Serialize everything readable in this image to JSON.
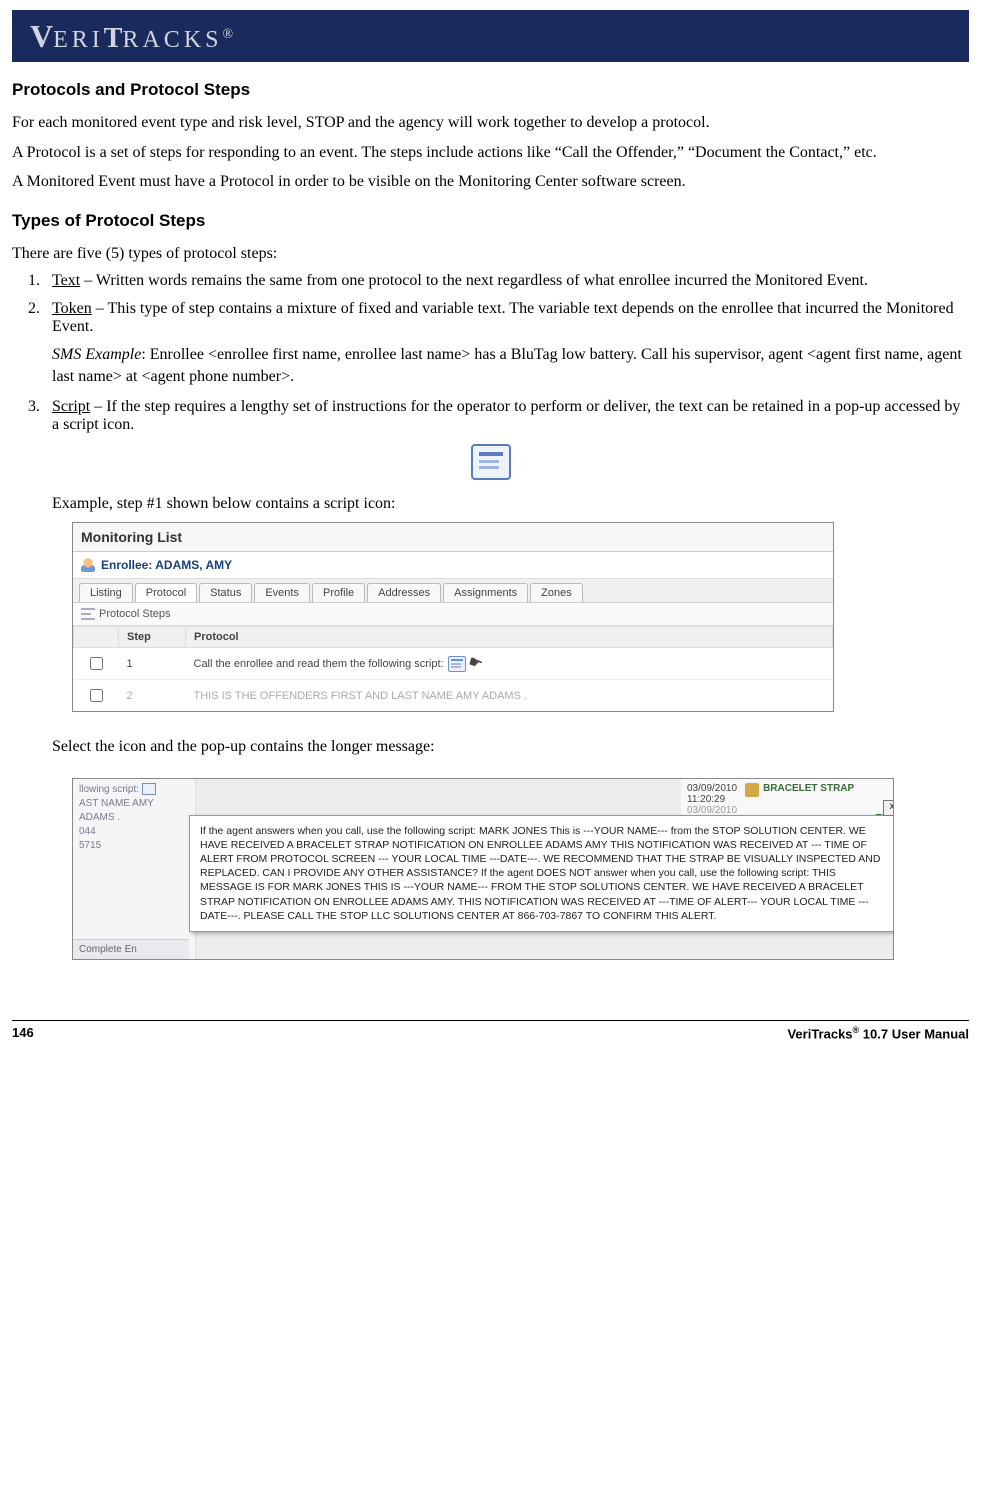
{
  "header": {
    "brand": "VERITRACKS",
    "reg": "®"
  },
  "section1": {
    "title": "Protocols and Protocol Steps",
    "p1": "For each monitored event type and risk level, STOP and the agency will work together to develop a protocol.",
    "p2": "A Protocol is a set of steps for responding to an event.  The steps include actions like “Call the Offender,” “Document the Contact,” etc.",
    "p3": "A Monitored Event must have a Protocol in order to be visible on the Monitoring Center software screen."
  },
  "section2": {
    "title": "Types of Protocol Steps",
    "intro": "There are five (5) types of protocol steps:",
    "item1_label": "Text",
    "item1_text": " – Written words remains the same from one protocol to the next regardless of what enrollee incurred the Monitored Event.",
    "item2_label": "Token",
    "item2_text": " – This type of step contains a mixture of fixed and variable text.  The variable text depends on the enrollee that incurred the Monitored Event.",
    "item2_example_label": "SMS Example",
    "item2_example_text": ":  Enrollee <enrollee first name, enrollee last name> has a BluTag low battery.  Call his supervisor, agent <agent first name, agent last name> at <agent phone number>.",
    "item3_label": "Script",
    "item3_text": " – If the step requires a lengthy set of instructions for the operator to perform or deliver, the text can be retained in a pop-up accessed by a script icon.",
    "example_caption": "Example, step #1 shown below contains a script icon:",
    "select_caption": "Select the icon and the pop-up contains the longer message:"
  },
  "monitoring_list": {
    "title": "Monitoring List",
    "enrollee_label": "Enrollee: ADAMS, AMY",
    "tabs": [
      "Listing",
      "Protocol",
      "Status",
      "Events",
      "Profile",
      "Addresses",
      "Assignments",
      "Zones"
    ],
    "active_tab_index": 1,
    "subheader": "Protocol Steps",
    "columns": [
      "",
      "Step",
      "Protocol"
    ],
    "rows": [
      {
        "checked": false,
        "step": "1",
        "protocol": "Call the enrollee and read them the following script:",
        "has_icon": true,
        "has_cursor": true,
        "faded": false
      },
      {
        "checked": false,
        "step": "2",
        "protocol": "THIS IS THE OFFENDERS FIRST AND LAST NAME AMY ADAMS .",
        "has_icon": false,
        "has_cursor": false,
        "faded": true
      }
    ]
  },
  "popup": {
    "bg_left_lines": [
      "llowing script:",
      "AST NAME AMY ADAMS .",
      "044",
      "5715"
    ],
    "bg_bottom_left": "Complete En",
    "bg_right_date1": "03/09/2010",
    "bg_right_time": "11:20:29",
    "bg_right_date2": "03/09/2010",
    "bg_right_label": "BRACELET STRAP",
    "bg_right_partial": "EN",
    "close_label": "x",
    "dialog_text": "If the agent answers when you call, use the following script: MARK JONES This is ---YOUR NAME--- from the STOP SOLUTION CENTER. WE HAVE RECEIVED A BRACELET STRAP NOTIFICATION ON ENROLLEE ADAMS AMY THIS NOTIFICATION WAS RECEIVED AT --- TIME OF ALERT FROM PROTOCOL SCREEN --- YOUR LOCAL TIME ---DATE---. WE RECOMMEND THAT THE STRAP BE VISUALLY INSPECTED AND REPLACED. CAN I PROVIDE ANY OTHER ASSISTANCE? If the agent DOES NOT answer when you call, use the following script: THIS MESSAGE IS FOR MARK JONES THIS IS ---YOUR NAME--- FROM THE STOP SOLUTIONS CENTER. WE HAVE RECEIVED A BRACELET STRAP NOTIFICATION ON ENROLLEE ADAMS AMY. THIS NOTIFICATION WAS RECEIVED AT ---TIME OF ALERT--- YOUR LOCAL TIME ---DATE---. PLEASE CALL THE STOP LLC SOLUTIONS CENTER AT 866-703-7867 TO CONFIRM THIS ALERT."
  },
  "footer": {
    "page": "146",
    "product": "VeriTracks",
    "reg": "®",
    "doc": " 10.7 User Manual"
  }
}
